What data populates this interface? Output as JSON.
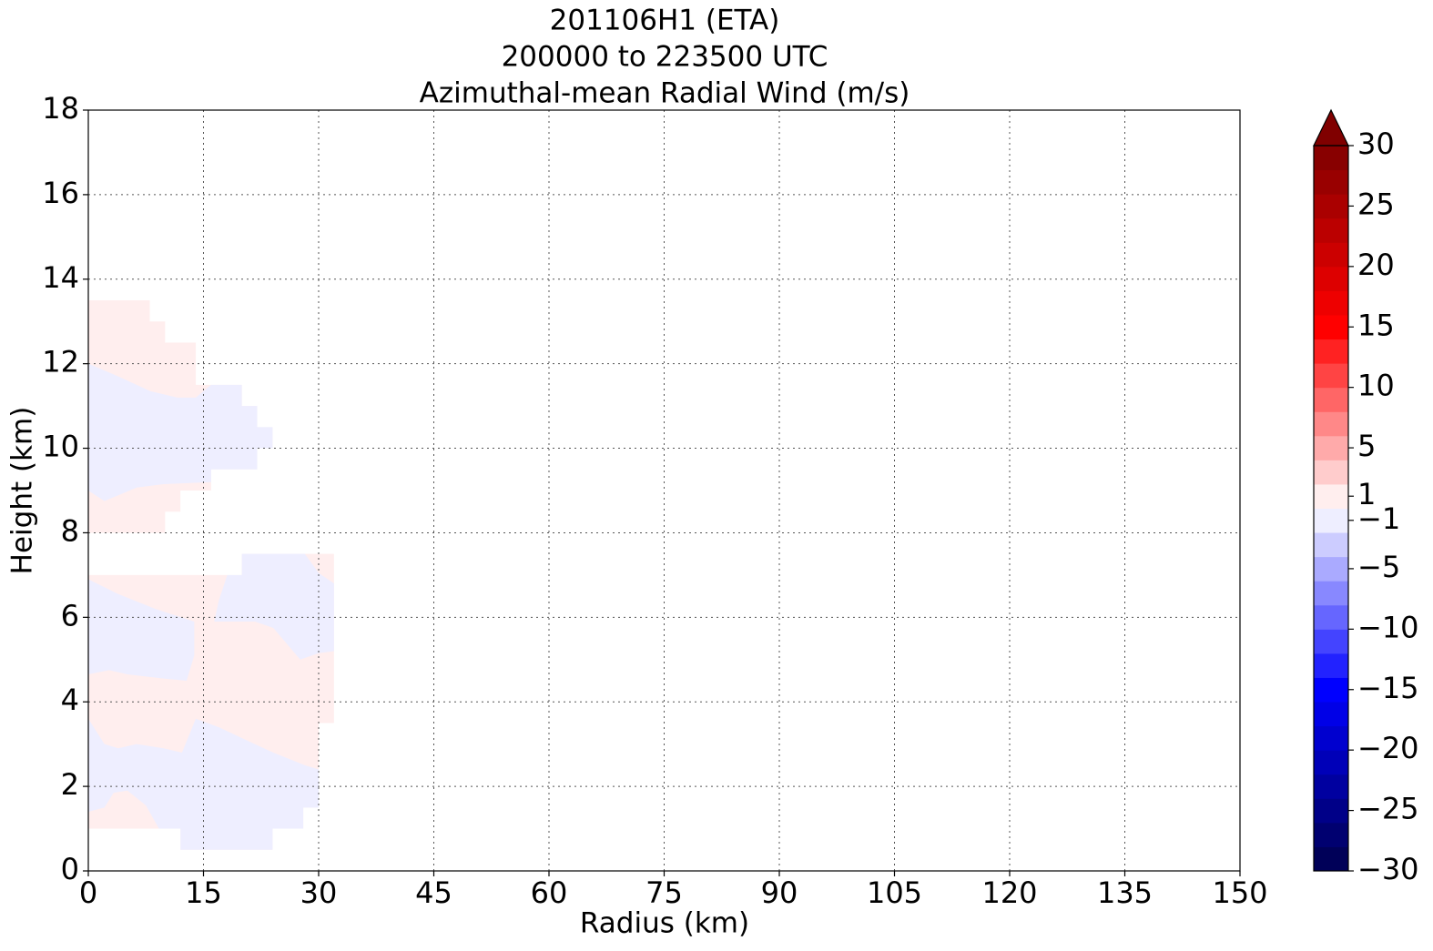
{
  "chart_data": {
    "type": "contourf",
    "title": [
      "201106H1 (ETA)",
      "200000 to 223500 UTC",
      "Azimuthal-mean Radial Wind (m/s)"
    ],
    "x_label": "Radius (km)",
    "y_label": "Height (km)",
    "xlim": [
      0,
      150
    ],
    "xticks": [
      0,
      15,
      30,
      45,
      60,
      75,
      90,
      105,
      120,
      135,
      150
    ],
    "ylim": [
      0,
      18
    ],
    "yticks": [
      0,
      2,
      4,
      6,
      8,
      10,
      12,
      14,
      16,
      18
    ],
    "grid": true,
    "grid_style": "dotted",
    "fills": [
      {
        "range": [
          0,
          2
        ],
        "x": [
          0,
          8,
          8,
          10,
          10,
          14,
          14,
          20,
          20,
          22,
          22,
          24,
          24,
          22,
          22,
          16,
          16,
          12,
          12,
          10,
          10,
          0
        ],
        "y": [
          13.5,
          13.5,
          13,
          13,
          12.5,
          12.5,
          11.5,
          11.5,
          11,
          11,
          10.5,
          10.5,
          10,
          10,
          9.5,
          9.5,
          9,
          9,
          8.5,
          8.5,
          8,
          8
        ]
      },
      {
        "range": [
          -2,
          0
        ],
        "x": [
          0,
          3.9,
          8.1,
          11.6,
          14,
          16,
          20,
          20,
          22,
          22,
          24,
          24,
          22,
          22,
          16,
          16,
          9.8,
          6.3,
          2.1,
          0
        ],
        "y": [
          12,
          11.7,
          11.35,
          11.2,
          11.2,
          11.5,
          11.5,
          11,
          11,
          10.5,
          10.5,
          10,
          10,
          9.5,
          9.5,
          9.2,
          9.15,
          9.07,
          8.75,
          9
        ]
      },
      {
        "range": [
          0,
          2
        ],
        "x": [
          0,
          20,
          20,
          32,
          32,
          30,
          30,
          28,
          28,
          24,
          24,
          12,
          12,
          0
        ],
        "y": [
          7,
          7,
          7.5,
          7.5,
          3.5,
          3.5,
          1.5,
          1.5,
          1,
          1,
          0.5,
          0.5,
          1,
          1
        ]
      },
      {
        "range": [
          -2,
          0
        ],
        "x": [
          0,
          3.9,
          8.7,
          13.8,
          13.8,
          12.8,
          9.8,
          5.1,
          2.7,
          0
        ],
        "y": [
          6.9,
          6.55,
          6.2,
          5.9,
          5.1,
          4.5,
          4.55,
          4.65,
          4.75,
          4.65
        ]
      },
      {
        "range": [
          -2,
          0
        ],
        "x": [
          20,
          28.2,
          30,
          32,
          32,
          30,
          27.6,
          26.2,
          24.1,
          21.7,
          16.4,
          17,
          18.1,
          20
        ],
        "y": [
          7.5,
          7.5,
          7.05,
          6.8,
          5.2,
          5.15,
          5,
          5.3,
          5.75,
          5.9,
          5.9,
          6.4,
          7,
          7
        ]
      },
      {
        "range": [
          -2,
          0
        ],
        "x": [
          0,
          2.1,
          3.9,
          6.3,
          9.8,
          12.2,
          14,
          17,
          20.5,
          24.1,
          28.2,
          30,
          30,
          28,
          28,
          24,
          24,
          12,
          12,
          9.2,
          7.5,
          5.1,
          3.3,
          2.1,
          0
        ],
        "y": [
          3.6,
          3,
          2.9,
          3,
          2.9,
          2.8,
          3.6,
          3.4,
          3.1,
          2.8,
          2.5,
          2.4,
          1.5,
          1.5,
          1,
          1,
          0.5,
          0.5,
          1,
          1,
          1.55,
          1.9,
          1.85,
          1.5,
          1.4
        ]
      }
    ],
    "colorbar": {
      "lim": [
        -30,
        30
      ],
      "levels": [
        -30,
        -28,
        -26,
        -24,
        -22,
        -20,
        -18,
        -16,
        -14,
        -12,
        -10,
        -8,
        -6,
        -4,
        -2,
        0,
        2,
        4,
        6,
        8,
        10,
        12,
        14,
        16,
        18,
        20,
        22,
        24,
        26,
        28,
        30
      ],
      "colors": [
        "#000058",
        "#000070",
        "#000088",
        "#0000a0",
        "#0000b8",
        "#0000cf",
        "#0000e7",
        "#0000ff",
        "#2222ff",
        "#4444ff",
        "#6666ff",
        "#8888ff",
        "#aaaaff",
        "#ccccff",
        "#eeeeff",
        "#ffeeee",
        "#ffcccc",
        "#ffaaaa",
        "#ff8888",
        "#ff6666",
        "#ff4444",
        "#ff2222",
        "#ff0000",
        "#ee0000",
        "#dd0000",
        "#cc0000",
        "#bb0000",
        "#aa0000",
        "#990000",
        "#880000"
      ],
      "extend": "max",
      "extend_color": "#800000",
      "ticks": [
        30,
        25,
        20,
        15,
        10,
        5,
        1,
        {
          "value": -1,
          "label": "−1"
        },
        {
          "value": -5,
          "label": "−5"
        },
        {
          "value": -10,
          "label": "−10"
        },
        {
          "value": -15,
          "label": "−15"
        },
        {
          "value": -20,
          "label": "−20"
        },
        {
          "value": -25,
          "label": "−25"
        },
        {
          "value": -30,
          "label": "−30"
        }
      ]
    }
  }
}
